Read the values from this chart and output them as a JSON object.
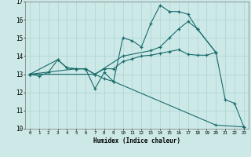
{
  "xlabel": "Humidex (Indice chaleur)",
  "xlim": [
    -0.5,
    23.5
  ],
  "ylim": [
    10,
    17
  ],
  "xticks": [
    0,
    1,
    2,
    3,
    4,
    5,
    6,
    7,
    8,
    9,
    10,
    11,
    12,
    13,
    14,
    15,
    16,
    17,
    18,
    19,
    20,
    21,
    22,
    23
  ],
  "yticks": [
    10,
    11,
    12,
    13,
    14,
    15,
    16,
    17
  ],
  "bg_color": "#cce9e8",
  "grid_color": "#aad4d2",
  "line_color": "#1a6b6b",
  "series": [
    {
      "x": [
        0,
        1,
        2,
        3,
        4,
        5,
        6,
        7,
        8,
        9,
        10,
        11,
        12,
        13,
        14,
        15,
        16,
        17,
        18,
        20,
        21,
        22,
        23
      ],
      "y": [
        13,
        12.9,
        13.1,
        13.8,
        13.35,
        13.3,
        13.3,
        12.2,
        13.1,
        12.6,
        15.0,
        14.85,
        14.5,
        15.8,
        16.8,
        16.45,
        16.45,
        16.3,
        15.5,
        14.2,
        11.6,
        11.4,
        10.1
      ]
    },
    {
      "x": [
        0,
        3,
        4,
        5,
        6,
        7,
        8,
        9,
        10,
        11,
        12,
        13,
        14,
        15,
        16,
        17,
        18,
        19,
        20
      ],
      "y": [
        13,
        13.8,
        13.35,
        13.3,
        13.3,
        13.0,
        13.3,
        13.3,
        13.7,
        13.85,
        14.0,
        14.05,
        14.15,
        14.25,
        14.35,
        14.1,
        14.05,
        14.05,
        14.2
      ]
    },
    {
      "x": [
        0,
        5,
        6,
        7,
        10,
        13,
        14,
        15,
        16,
        17,
        18,
        20
      ],
      "y": [
        13,
        13.3,
        13.3,
        13.0,
        14.0,
        14.3,
        14.5,
        15.0,
        15.5,
        15.9,
        15.5,
        14.2
      ]
    },
    {
      "x": [
        0,
        7,
        8,
        9,
        20,
        23
      ],
      "y": [
        13,
        13.0,
        12.75,
        12.6,
        10.2,
        10.1
      ]
    }
  ]
}
